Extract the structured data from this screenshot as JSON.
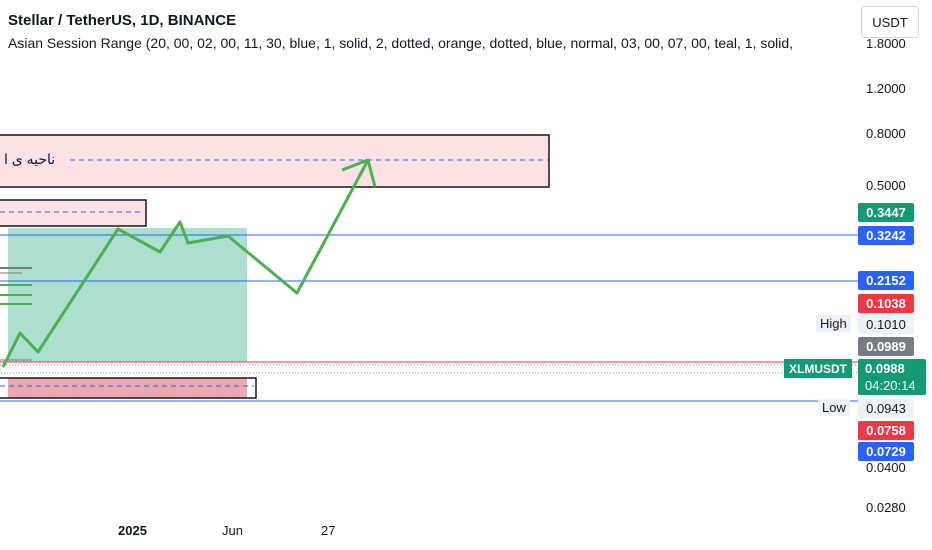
{
  "header": {
    "title": "Stellar / TetherUS, 1D, BINANCE",
    "indicator": "Asian Session Range (20, 00, 02, 00, 11, 30, blue, 1, solid, 2, dotted, orange, dotted, blue, normal, 03, 00, 07, 00, teal, 1, solid,"
  },
  "currency_button": "USDT",
  "price_axis": {
    "ticks": [
      "1.8000",
      "1.2000",
      "0.8000",
      "0.5000",
      "0.0400",
      "0.0280"
    ]
  },
  "price_tags": {
    "p3447": "0.3447",
    "p3242": "0.3242",
    "p2152": "0.2152",
    "p1038": "0.1038",
    "high_label": "High",
    "high_value": "0.1010",
    "p0989": "0.0989",
    "symbol": "XLMUSDT",
    "last_price": "0.0988",
    "countdown": "04:20:14",
    "low_label": "Low",
    "low_value": "0.0943",
    "p0758": "0.0758",
    "p0729": "0.0729"
  },
  "time_axis": [
    "2025",
    "Jun",
    "27"
  ],
  "annotation": {
    "zone_text": "ناحیه ی ا"
  },
  "colors": {
    "green_tag": "#129a75",
    "blue_line": "#2962ff",
    "red_tag": "#f23645",
    "arrow": "#4caf50",
    "zone_fill": "#fde2e4",
    "teal_fill": "#9dd9c6"
  }
}
